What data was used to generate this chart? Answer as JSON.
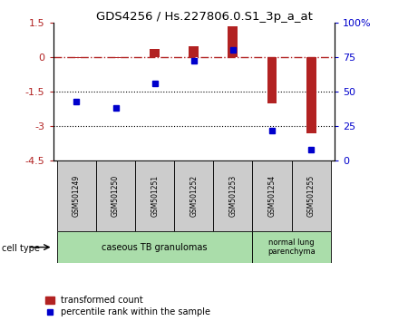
{
  "title": "GDS4256 / Hs.227806.0.S1_3p_a_at",
  "samples": [
    "GSM501249",
    "GSM501250",
    "GSM501251",
    "GSM501252",
    "GSM501253",
    "GSM501254",
    "GSM501255"
  ],
  "transformed_count": [
    -0.05,
    -0.05,
    0.35,
    0.45,
    1.35,
    -2.0,
    -3.3
  ],
  "percentile_rank": [
    43,
    38,
    56,
    72,
    80,
    22,
    8
  ],
  "ylim_left": [
    -4.5,
    1.5
  ],
  "ylim_right": [
    0,
    100
  ],
  "left_yticks": [
    1.5,
    0,
    -1.5,
    -3,
    -4.5
  ],
  "left_yticklabels": [
    "1.5",
    "0",
    "-1.5",
    "-3",
    "-4.5"
  ],
  "right_yticks": [
    100,
    75,
    50,
    25,
    0
  ],
  "right_yticklabels": [
    "100%",
    "75",
    "50",
    "25",
    "0"
  ],
  "dotted_lines": [
    -1.5,
    -3.0
  ],
  "bar_color": "#b22222",
  "point_color": "#0000cc",
  "cell_type_label": "cell type",
  "ct_group1_label": "caseous TB granulomas",
  "ct_group2_label": "normal lung\nparenchyma",
  "ct_color": "#aaddaa",
  "sample_box_color": "#cccccc",
  "legend_bar_label": "transformed count",
  "legend_point_label": "percentile rank within the sample",
  "bar_width": 0.25
}
